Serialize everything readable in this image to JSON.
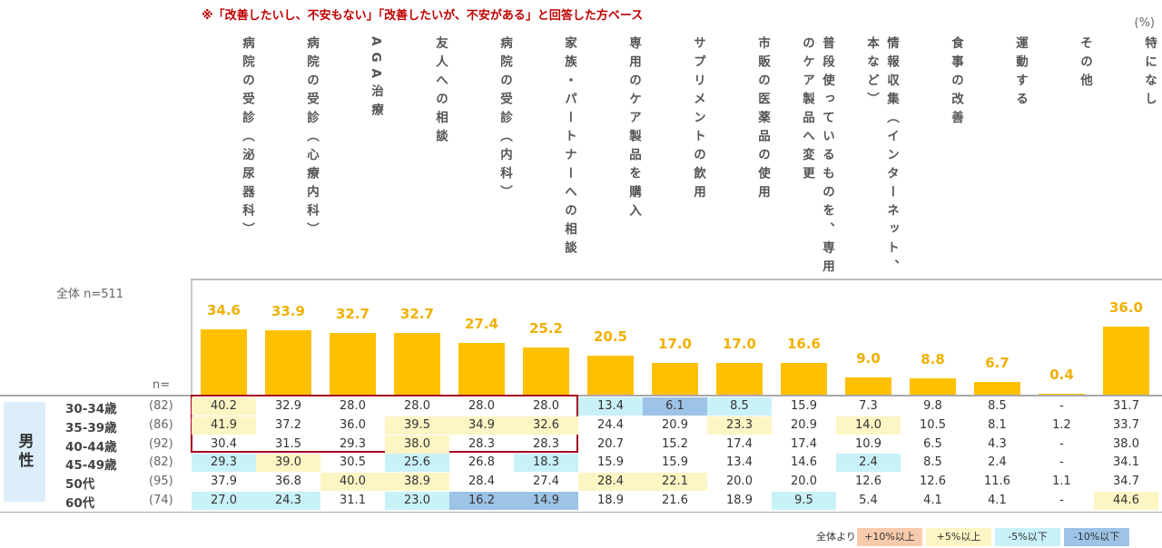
{
  "note": "※「改善したいし、不安もない」「改善したいが、不安がある」と回答した方ベース",
  "unit": "(%)",
  "total_label": "全体 n=511",
  "n_label": "n=",
  "chart_data": {
    "type": "bar",
    "categories": [
      "病院の受診（泌尿器科）",
      "病院の受診（心療内科）",
      "AGA治療",
      "友人への相談",
      "病院の受診（内科）",
      "家族・パートナーへの相談",
      "専用のケア製品を購入",
      "サプリメントの飲用",
      "市販の医薬品の使用",
      "普段使っているものを、専用のケア製品へ変更",
      "情報収集（インターネット、本など）",
      "食事の改善",
      "運動する",
      "その他",
      "特になし"
    ],
    "values": [
      34.6,
      33.9,
      32.7,
      32.7,
      27.4,
      25.2,
      20.5,
      17.0,
      17.0,
      16.6,
      9.0,
      8.8,
      6.7,
      0.4,
      36.0
    ],
    "value_labels": [
      "34.6",
      "33.9",
      "32.7",
      "32.7",
      "27.4",
      "25.2",
      "20.5",
      "17.0",
      "17.0",
      "16.6",
      "9.0",
      "8.8",
      "6.7",
      "0.4",
      "36.0"
    ],
    "color": "#ffc000",
    "ylim": [
      0,
      60
    ]
  },
  "table": {
    "group": "男性",
    "rows": [
      {
        "label": "30-34歳",
        "n": "(82)",
        "cells": [
          "40.2",
          "32.9",
          "28.0",
          "28.0",
          "28.0",
          "28.0",
          "13.4",
          "6.1",
          "8.5",
          "15.9",
          "7.3",
          "9.8",
          "8.5",
          "-",
          "31.7"
        ]
      },
      {
        "label": "35-39歳",
        "n": "(86)",
        "cells": [
          "41.9",
          "37.2",
          "36.0",
          "39.5",
          "34.9",
          "32.6",
          "24.4",
          "20.9",
          "23.3",
          "20.9",
          "14.0",
          "10.5",
          "8.1",
          "1.2",
          "33.7"
        ]
      },
      {
        "label": "40-44歳",
        "n": "(92)",
        "cells": [
          "30.4",
          "31.5",
          "29.3",
          "38.0",
          "28.3",
          "28.3",
          "20.7",
          "15.2",
          "17.4",
          "17.4",
          "10.9",
          "6.5",
          "4.3",
          "-",
          "38.0"
        ]
      },
      {
        "label": "45-49歳",
        "n": "(82)",
        "cells": [
          "29.3",
          "39.0",
          "30.5",
          "25.6",
          "26.8",
          "18.3",
          "15.9",
          "15.9",
          "13.4",
          "14.6",
          "2.4",
          "8.5",
          "2.4",
          "-",
          "34.1"
        ]
      },
      {
        "label": "50代",
        "n": "(95)",
        "cells": [
          "37.9",
          "36.8",
          "40.0",
          "38.9",
          "28.4",
          "27.4",
          "28.4",
          "22.1",
          "20.0",
          "20.0",
          "12.6",
          "12.6",
          "11.6",
          "1.1",
          "34.7"
        ]
      },
      {
        "label": "60代",
        "n": "(74)",
        "cells": [
          "27.0",
          "24.3",
          "31.1",
          "23.0",
          "16.2",
          "14.9",
          "18.9",
          "21.6",
          "18.9",
          "9.5",
          "5.4",
          "4.1",
          "4.1",
          "-",
          "44.6"
        ]
      }
    ]
  },
  "legend": {
    "title": "全体より",
    "items": [
      {
        "label": "+10%以上",
        "threshold": 10,
        "color": "#f8cbad"
      },
      {
        "label": "+5%以上",
        "threshold": 5,
        "color": "#fdf5c4"
      },
      {
        "label": "-5%以下",
        "threshold": -5,
        "color": "#c9f1f8"
      },
      {
        "label": "-10%以下",
        "threshold": -10,
        "color": "#9dc3e6"
      }
    ]
  }
}
